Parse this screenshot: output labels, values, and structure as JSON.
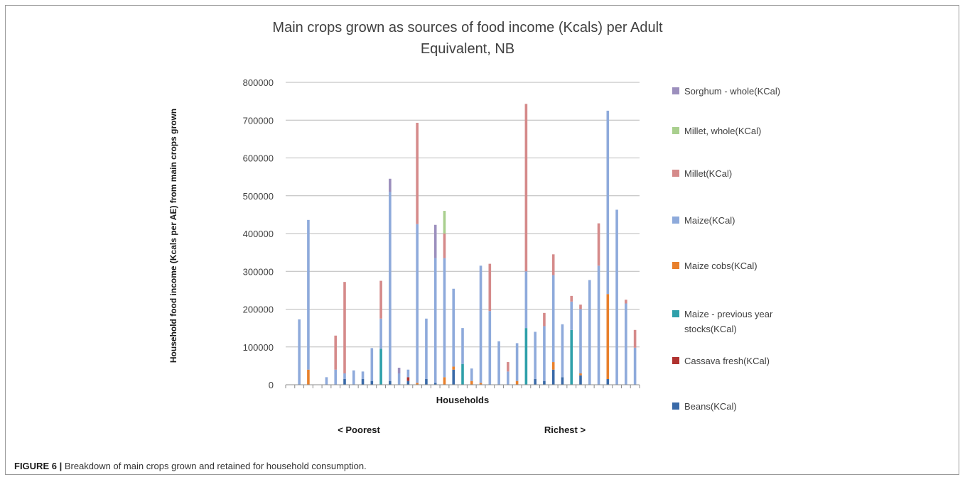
{
  "figure": {
    "caption_label": "FIGURE 6 |",
    "caption_text": " Breakdown of main crops grown and retained for household consumption."
  },
  "chart_data": {
    "type": "bar",
    "stacked": true,
    "title_line1": "Main crops grown as sources of food income (Kcals) per Adult",
    "title_line2": "Equivalent, NB",
    "xlabel": "Households",
    "ylabel": "Household food income (Kcals per AE) from main crops grown",
    "annotation_left": "< Poorest",
    "annotation_right": "Richest >",
    "ylim": [
      0,
      800000
    ],
    "yticks": [
      0,
      100000,
      200000,
      300000,
      400000,
      500000,
      600000,
      700000,
      800000
    ],
    "ytick_labels": [
      "0",
      "100000",
      "200000",
      "300000",
      "400000",
      "500000",
      "600000",
      "700000",
      "800000"
    ],
    "grid": true,
    "legend_position": "right",
    "colors": {
      "Sorghum - whole(KCal)": "#9c8fbd",
      "Millet, whole(KCal)": "#a9cf8e",
      "Millet(KCal)": "#d58a8a",
      "Maize(KCal)": "#8eaadb",
      "Maize cobs(KCal)": "#e8802c",
      "Maize - previous year stocks(KCal)": "#2fa0aa",
      "Cassava fresh(KCal)": "#b0322f",
      "Beans(KCal)": "#3a6aa8"
    },
    "legend": [
      "Sorghum - whole(KCal)",
      "Millet, whole(KCal)",
      "Millet(KCal)",
      "Maize(KCal)",
      "Maize cobs(KCal)",
      "Maize - previous year stocks(KCal)",
      "Cassava fresh(KCal)",
      "Beans(KCal)"
    ],
    "legend_display": [
      [
        "Sorghum - whole(KCal)"
      ],
      [
        "Millet, whole(KCal)"
      ],
      [
        "Millet(KCal)"
      ],
      [
        "Maize(KCal)"
      ],
      [
        "Maize cobs(KCal)"
      ],
      [
        "Maize - previous year",
        "stocks(KCal)"
      ],
      [
        "Cassava fresh(KCal)"
      ],
      [
        "Beans(KCal)"
      ]
    ],
    "stack_order": [
      "Beans(KCal)",
      "Cassava fresh(KCal)",
      "Maize - previous year stocks(KCal)",
      "Maize cobs(KCal)",
      "Maize(KCal)",
      "Millet(KCal)",
      "Millet, whole(KCal)",
      "Sorghum - whole(KCal)"
    ],
    "households": [
      {},
      {
        "Maize(KCal)": 173000
      },
      {
        "Maize cobs(KCal)": 40000,
        "Maize(KCal)": 396000
      },
      {},
      {
        "Maize(KCal)": 20000
      },
      {
        "Maize(KCal)": 40000,
        "Millet(KCal)": 90000
      },
      {
        "Beans(KCal)": 15000,
        "Maize(KCal)": 15000,
        "Millet(KCal)": 242000
      },
      {
        "Maize(KCal)": 38000
      },
      {
        "Beans(KCal)": 15000,
        "Maize(KCal)": 20000
      },
      {
        "Beans(KCal)": 10000,
        "Maize(KCal)": 87000
      },
      {
        "Maize - previous year stocks(KCal)": 95000,
        "Maize(KCal)": 80000,
        "Millet(KCal)": 100000
      },
      {
        "Beans(KCal)": 10000,
        "Maize(KCal)": 500000,
        "Sorghum - whole(KCal)": 35000
      },
      {
        "Maize(KCal)": 30000,
        "Sorghum - whole(KCal)": 15000
      },
      {
        "Beans(KCal)": 10000,
        "Cassava fresh(KCal)": 10000,
        "Maize(KCal)": 20000
      },
      {
        "Maize cobs(KCal)": 5000,
        "Maize(KCal)": 420000,
        "Millet(KCal)": 268000
      },
      {
        "Beans(KCal)": 15000,
        "Maize(KCal)": 160000
      },
      {
        "Beans(KCal)": 5000,
        "Maize(KCal)": 330000,
        "Sorghum - whole(KCal)": 88000
      },
      {
        "Maize cobs(KCal)": 20000,
        "Maize(KCal)": 315000,
        "Millet(KCal)": 65000,
        "Millet, whole(KCal)": 60000
      },
      {
        "Beans(KCal)": 40000,
        "Maize cobs(KCal)": 8000,
        "Maize(KCal)": 206000
      },
      {
        "Maize - previous year stocks(KCal)": 55000,
        "Maize(KCal)": 95000
      },
      {
        "Maize cobs(KCal)": 10000,
        "Maize(KCal)": 33000
      },
      {
        "Maize cobs(KCal)": 5000,
        "Maize(KCal)": 310000
      },
      {
        "Maize(KCal)": 195000,
        "Millet(KCal)": 125000
      },
      {
        "Maize(KCal)": 115000
      },
      {
        "Maize(KCal)": 35000,
        "Millet(KCal)": 25000
      },
      {
        "Maize cobs(KCal)": 10000,
        "Maize(KCal)": 100000
      },
      {
        "Maize - previous year stocks(KCal)": 150000,
        "Maize(KCal)": 150000,
        "Millet(KCal)": 443000
      },
      {
        "Beans(KCal)": 15000,
        "Maize(KCal)": 125000
      },
      {
        "Beans(KCal)": 10000,
        "Maize(KCal)": 145000,
        "Millet(KCal)": 35000
      },
      {
        "Beans(KCal)": 40000,
        "Maize cobs(KCal)": 20000,
        "Maize(KCal)": 230000,
        "Millet(KCal)": 55000
      },
      {
        "Beans(KCal)": 20000,
        "Maize(KCal)": 140000
      },
      {
        "Maize - previous year stocks(KCal)": 145000,
        "Maize(KCal)": 75000,
        "Millet(KCal)": 15000
      },
      {
        "Beans(KCal)": 25000,
        "Maize cobs(KCal)": 5000,
        "Maize(KCal)": 170000,
        "Millet(KCal)": 12000
      },
      {
        "Maize(KCal)": 277000
      },
      {
        "Maize(KCal)": 315000,
        "Millet(KCal)": 112000
      },
      {
        "Beans(KCal)": 15000,
        "Maize cobs(KCal)": 225000,
        "Maize(KCal)": 485000
      },
      {
        "Maize(KCal)": 463000
      },
      {
        "Maize(KCal)": 215000,
        "Millet(KCal)": 10000
      },
      {
        "Maize(KCal)": 98000,
        "Millet(KCal)": 47000
      }
    ]
  }
}
